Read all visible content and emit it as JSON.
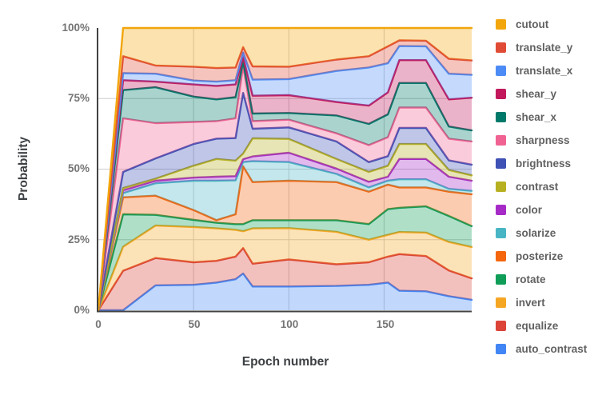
{
  "figure": {
    "y_axis_title": "Probability",
    "x_axis_title": "Epoch number",
    "y_tick_labels": [
      "100%",
      "75%",
      "50%",
      "25%",
      "0%"
    ],
    "x_tick_labels": [
      "0",
      "50",
      "100",
      "150"
    ]
  },
  "legend": {
    "items": [
      {
        "label": "cutout",
        "color": "#F2A60C"
      },
      {
        "label": "translate_y",
        "color": "#E04B35"
      },
      {
        "label": "translate_x",
        "color": "#4C8BF5"
      },
      {
        "label": "shear_y",
        "color": "#C2185B"
      },
      {
        "label": "shear_x",
        "color": "#00796B"
      },
      {
        "label": "sharpness",
        "color": "#F06292"
      },
      {
        "label": "brightness",
        "color": "#3F51B5"
      },
      {
        "label": "contrast",
        "color": "#B7B021"
      },
      {
        "label": "color",
        "color": "#A62BC6"
      },
      {
        "label": "solarize",
        "color": "#48B5C4"
      },
      {
        "label": "posterize",
        "color": "#F4650C"
      },
      {
        "label": "rotate",
        "color": "#0F9D58"
      },
      {
        "label": "invert",
        "color": "#F5A623"
      },
      {
        "label": "equalize",
        "color": "#DB4437"
      },
      {
        "label": "auto_contrast",
        "color": "#4285F4"
      }
    ]
  },
  "chart_data": {
    "type": "area",
    "stacking": "percent",
    "title": "",
    "xlabel": "Epoch number",
    "ylabel": "Probability",
    "xlim": [
      0,
      196
    ],
    "ylim": [
      0,
      100
    ],
    "grid": true,
    "legend_position": "right",
    "x_ticks": [
      0,
      50,
      100,
      150
    ],
    "y_ticks_percent": [
      0,
      25,
      50,
      75,
      100
    ],
    "x": [
      0,
      13,
      30,
      50,
      62,
      72,
      76,
      81,
      100,
      125,
      142,
      152,
      158,
      172,
      184,
      196
    ],
    "units": "probability percent, series stacked bottom-to-top summing to 100 after epoch 13",
    "series": [
      {
        "name": "auto_contrast",
        "color": "#4285F4",
        "values": [
          0,
          0.0,
          8.8,
          9.0,
          9.8,
          11.0,
          13.0,
          8.4,
          8.4,
          8.6,
          9.0,
          9.8,
          6.9,
          6.7,
          5.0,
          3.7
        ]
      },
      {
        "name": "equalize",
        "color": "#DB4437",
        "values": [
          0,
          14.0,
          9.7,
          8.0,
          7.7,
          8.0,
          9.0,
          8.1,
          9.6,
          7.7,
          8.0,
          9.2,
          13.0,
          12.5,
          9.1,
          7.6
        ]
      },
      {
        "name": "invert",
        "color": "#F5A623",
        "values": [
          0,
          8.5,
          11.5,
          12.5,
          11.5,
          9.5,
          6.0,
          12.5,
          11.1,
          11.5,
          8.0,
          7.7,
          7.8,
          8.3,
          10.1,
          11.1
        ]
      },
      {
        "name": "rotate",
        "color": "#0F9D58",
        "values": [
          0,
          11.5,
          3.8,
          2.5,
          2.0,
          2.0,
          2.5,
          2.9,
          2.8,
          4.1,
          5.5,
          9.1,
          8.6,
          9.3,
          9.2,
          7.4
        ]
      },
      {
        "name": "posterize",
        "color": "#F4650C",
        "values": [
          0,
          6.0,
          6.8,
          3.5,
          0.9,
          3.5,
          20.5,
          13.5,
          14.0,
          13.5,
          11.5,
          8.7,
          7.2,
          6.7,
          8.6,
          11.3
        ]
      },
      {
        "name": "solarize",
        "color": "#48B5C4",
        "values": [
          0,
          1.5,
          4.4,
          10.4,
          14.0,
          12.0,
          1.5,
          7.4,
          6.6,
          2.9,
          1.5,
          1.4,
          2.9,
          2.9,
          1.0,
          1.2
        ]
      },
      {
        "name": "color",
        "color": "#A62BC6",
        "values": [
          0,
          1.0,
          0.9,
          1.1,
          1.4,
          1.5,
          1.0,
          1.7,
          3.3,
          1.9,
          2.0,
          1.4,
          7.2,
          7.2,
          4.3,
          3.6
        ]
      },
      {
        "name": "contrast",
        "color": "#B7B021",
        "values": [
          0,
          0.8,
          0.7,
          4.2,
          6.3,
          5.5,
          2.0,
          6.4,
          4.9,
          3.4,
          3.5,
          3.9,
          5.3,
          5.3,
          2.4,
          1.9
        ]
      },
      {
        "name": "brightness",
        "color": "#3F51B5",
        "values": [
          0,
          5.7,
          7.2,
          7.7,
          7.2,
          8.0,
          21.5,
          3.4,
          4.1,
          6.2,
          3.5,
          3.4,
          5.7,
          5.7,
          3.4,
          3.8
        ]
      },
      {
        "name": "sharpness",
        "color": "#F06292",
        "values": [
          0,
          19.0,
          12.5,
          7.8,
          6.2,
          7.0,
          9.5,
          2.7,
          2.7,
          2.9,
          6.0,
          6.7,
          7.2,
          7.2,
          7.7,
          8.2
        ]
      },
      {
        "name": "shear_x",
        "color": "#00796B",
        "values": [
          0,
          10.0,
          12.7,
          9.0,
          7.7,
          7.5,
          1.5,
          2.7,
          2.4,
          6.3,
          7.5,
          8.1,
          8.7,
          8.7,
          4.3,
          3.9
        ]
      },
      {
        "name": "shear_y",
        "color": "#C2185B",
        "values": [
          0,
          3.5,
          2.0,
          4.3,
          4.8,
          4.5,
          1.8,
          6.3,
          6.3,
          4.8,
          6.5,
          7.8,
          8.1,
          8.1,
          9.6,
          11.6
        ]
      },
      {
        "name": "translate_x",
        "color": "#4C8BF5",
        "values": [
          0,
          2.5,
          2.8,
          1.4,
          1.5,
          1.5,
          1.5,
          5.7,
          5.7,
          11.0,
          13.5,
          10.3,
          5.0,
          4.9,
          9.1,
          8.1
        ]
      },
      {
        "name": "translate_y",
        "color": "#E04B35",
        "values": [
          0,
          6.0,
          2.9,
          4.9,
          4.8,
          4.5,
          1.9,
          4.7,
          4.4,
          4.0,
          4.0,
          6.0,
          2.0,
          2.0,
          5.3,
          5.1
        ]
      },
      {
        "name": "cutout",
        "color": "#F2A60C",
        "values": [
          0,
          10.0,
          13.3,
          13.7,
          14.2,
          14.0,
          6.8,
          13.6,
          13.7,
          11.2,
          10.0,
          6.5,
          4.4,
          4.5,
          10.9,
          11.5
        ]
      }
    ],
    "style": {
      "gridline_color": "#cccccc",
      "axis_line_color": "#424242",
      "tick_label_color": "#757575",
      "axis_title_color": "#3c4043",
      "legend_text_color": "#616161",
      "area_opacity": 0.33,
      "line_width": 2.4
    }
  }
}
